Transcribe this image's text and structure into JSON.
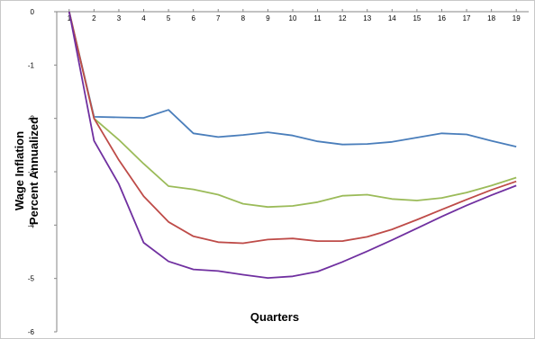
{
  "chart_data": {
    "type": "line",
    "title": "",
    "xlabel": "Quarters",
    "ylabel_lines": [
      "Wage Inflation",
      "Percent Annualized"
    ],
    "x": [
      1,
      2,
      3,
      4,
      5,
      6,
      7,
      8,
      9,
      10,
      11,
      12,
      13,
      14,
      15,
      16,
      17,
      18,
      19
    ],
    "xlim": [
      0.5,
      19.5
    ],
    "ylim": [
      -6,
      0
    ],
    "yticks": [
      0,
      -1,
      -2,
      -3,
      -4,
      -5,
      -6
    ],
    "x_axis_position": "top",
    "grid": false,
    "legend": "none",
    "series": [
      {
        "color": "#4a7ebb",
        "values": [
          0,
          -1.97,
          -1.98,
          -1.99,
          -1.84,
          -2.28,
          -2.35,
          -2.31,
          -2.26,
          -2.32,
          -2.43,
          -2.49,
          -2.48,
          -2.44,
          -2.36,
          -2.28,
          -2.3,
          -2.42,
          -2.53
        ]
      },
      {
        "color": "#9bbb59",
        "values": [
          0,
          -2.0,
          -2.4,
          -2.85,
          -3.27,
          -3.33,
          -3.43,
          -3.6,
          -3.66,
          -3.64,
          -3.57,
          -3.45,
          -3.43,
          -3.51,
          -3.54,
          -3.49,
          -3.39,
          -3.26,
          -3.11
        ]
      },
      {
        "color": "#be4b48",
        "values": [
          0,
          -2.0,
          -2.78,
          -3.46,
          -3.94,
          -4.21,
          -4.32,
          -4.34,
          -4.27,
          -4.25,
          -4.3,
          -4.3,
          -4.22,
          -4.08,
          -3.9,
          -3.71,
          -3.52,
          -3.34,
          -3.18
        ]
      },
      {
        "color": "#7030a0",
        "values": [
          0,
          -2.42,
          -3.23,
          -4.33,
          -4.68,
          -4.83,
          -4.86,
          -4.93,
          -4.99,
          -4.96,
          -4.87,
          -4.69,
          -4.49,
          -4.28,
          -4.06,
          -3.84,
          -3.63,
          -3.44,
          -3.26
        ]
      }
    ]
  }
}
